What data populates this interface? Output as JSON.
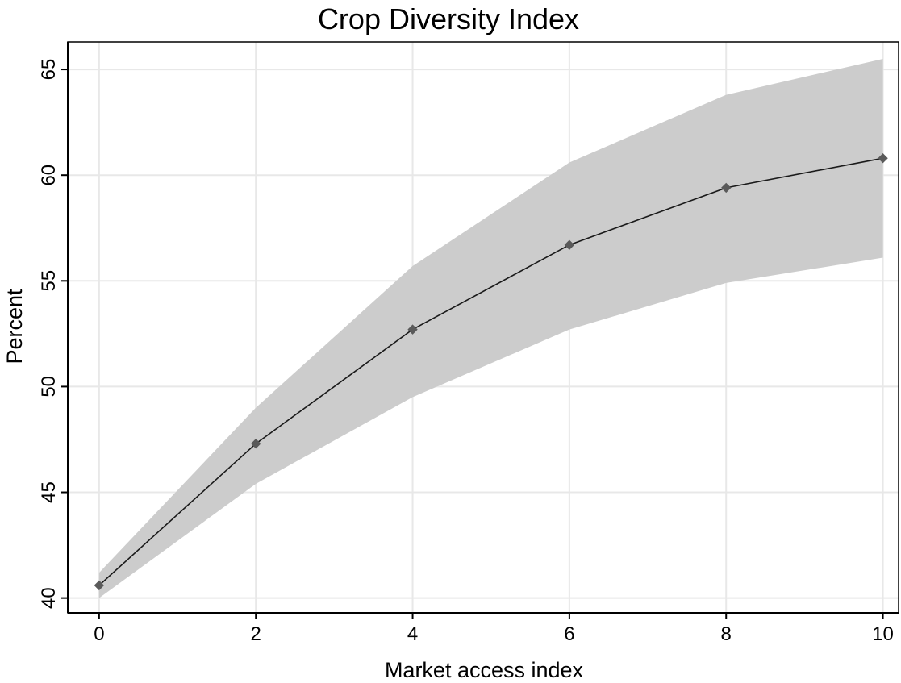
{
  "chart_data": {
    "type": "line",
    "title": "Crop Diversity Index",
    "xlabel": "Market access index",
    "ylabel": "Percent",
    "xlim": [
      -0.4,
      10.2
    ],
    "ylim": [
      39.3,
      66.3
    ],
    "xticks": [
      0,
      2,
      4,
      6,
      8,
      10
    ],
    "yticks": [
      40,
      45,
      50,
      55,
      60,
      65
    ],
    "grid": true,
    "series": [
      {
        "x": [
          0,
          2,
          4,
          6,
          8,
          10
        ],
        "values": [
          40.6,
          47.3,
          52.7,
          56.7,
          59.4,
          60.8
        ],
        "ci_lower": [
          40.0,
          45.4,
          49.5,
          52.7,
          54.9,
          56.1
        ],
        "ci_upper": [
          41.2,
          49.0,
          55.7,
          60.6,
          63.8,
          65.5
        ]
      }
    ],
    "colors": {
      "line": "#1a1a1a",
      "marker": "#5a5a5a",
      "band": "#cccccc",
      "grid": "#e8e8e8"
    }
  }
}
